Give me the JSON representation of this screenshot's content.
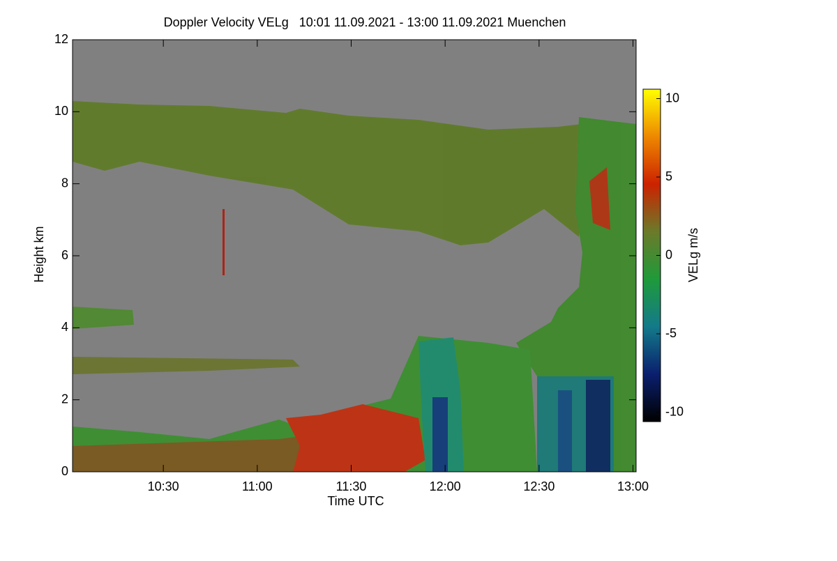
{
  "chart_data": {
    "type": "heatmap",
    "title": "Doppler Velocity VELg   10:01 11.09.2021 - 13:00 11.09.2021 Muenchen",
    "x_label": "Time UTC",
    "y_label": "Height km",
    "colorbar_label": "VELg m/s",
    "xlim": [
      601,
      781
    ],
    "xticks": [
      {
        "value": 630,
        "label": "10:30"
      },
      {
        "value": 660,
        "label": "11:00"
      },
      {
        "value": 690,
        "label": "11:30"
      },
      {
        "value": 720,
        "label": "12:00"
      },
      {
        "value": 750,
        "label": "12:30"
      },
      {
        "value": 780,
        "label": "13:00"
      }
    ],
    "ylim": [
      0,
      12
    ],
    "yticks": [
      0,
      2,
      4,
      6,
      8,
      10,
      12
    ],
    "clim": [
      -10.6,
      10.6
    ],
    "cticks": [
      -10,
      -5,
      0,
      5,
      10
    ],
    "colormap": [
      "#000000",
      "#0a1f6e",
      "#137a8a",
      "#1f9a3a",
      "#6b7a2a",
      "#cc2200",
      "#ee8800",
      "#ffff00"
    ],
    "background": "#808080"
  }
}
